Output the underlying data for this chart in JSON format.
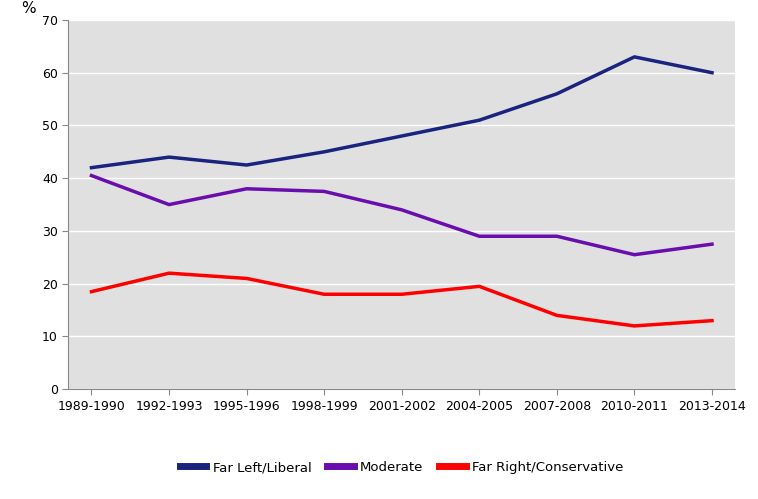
{
  "x_labels": [
    "1989-1990",
    "1992-1993",
    "1995-1996",
    "1998-1999",
    "2001-2002",
    "2004-2005",
    "2007-2008",
    "2010-2011",
    "2013-2014"
  ],
  "far_left_liberal": [
    42,
    44,
    42.5,
    45,
    48,
    51,
    56,
    63,
    60
  ],
  "moderate": [
    40.5,
    35,
    38,
    37.5,
    34,
    29,
    29,
    25.5,
    27.5
  ],
  "far_right_conservative": [
    18.5,
    22,
    21,
    18,
    18,
    19.5,
    14,
    12,
    13
  ],
  "far_left_color": "#1a237e",
  "moderate_color": "#6a0dad",
  "far_right_color": "#ff0000",
  "plot_bg_color": "#e0e0e0",
  "fig_bg_color": "#ffffff",
  "grid_color": "#ffffff",
  "ylabel": "%",
  "ylim": [
    0,
    70
  ],
  "yticks": [
    0,
    10,
    20,
    30,
    40,
    50,
    60,
    70
  ],
  "legend_labels": [
    "Far Left/Liberal",
    "Moderate",
    "Far Right/Conservative"
  ],
  "line_width": 2.5,
  "tick_label_fontsize": 9,
  "ylabel_fontsize": 11
}
